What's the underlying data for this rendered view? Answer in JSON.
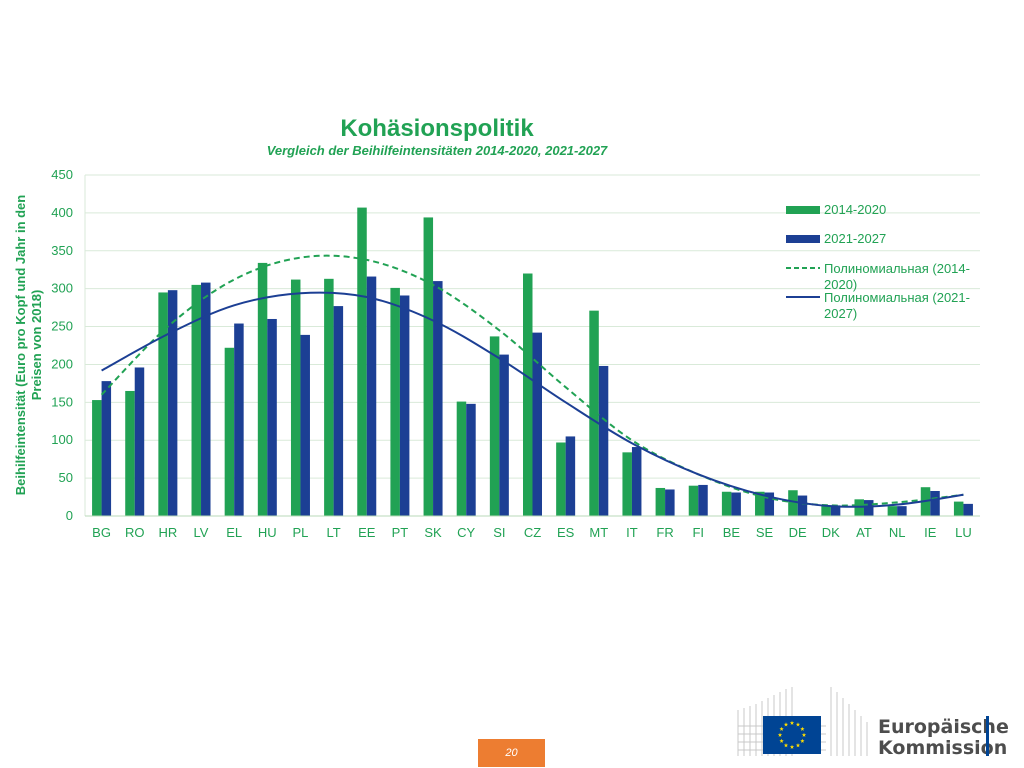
{
  "page_number": "20",
  "logo": {
    "line1": "Europäische",
    "line2": "Kommission"
  },
  "colors": {
    "series1": "#21a254",
    "series2": "#1c3f94",
    "title": "#21a254",
    "axis_text": "#21a254",
    "grid": "#d9ead9",
    "page_box": "#ed7d31",
    "logo_blue": "#004494",
    "logo_star": "#ffdd00"
  },
  "chart_data": {
    "type": "bar",
    "title": "Kohäsionspolitik",
    "subtitle": "Vergleich der Beihilfeintensitäten 2014-2020, 2021-2027",
    "xlabel": "",
    "ylabel": "Beihilfeintensität (Euro pro Kopf und Jahr in den Preisen von 2018)",
    "ylim": [
      0,
      450
    ],
    "yticks": [
      0,
      50,
      100,
      150,
      200,
      250,
      300,
      350,
      400,
      450
    ],
    "grid": true,
    "legend_position": "right",
    "categories": [
      "BG",
      "RO",
      "HR",
      "LV",
      "EL",
      "HU",
      "PL",
      "LT",
      "EE",
      "PT",
      "SK",
      "CY",
      "SI",
      "CZ",
      "ES",
      "MT",
      "IT",
      "FR",
      "FI",
      "BE",
      "SE",
      "DE",
      "DK",
      "AT",
      "NL",
      "IE",
      "LU"
    ],
    "series": [
      {
        "name": "2014-2020",
        "values": [
          153,
          165,
          295,
          305,
          222,
          334,
          312,
          313,
          407,
          301,
          394,
          151,
          237,
          320,
          97,
          271,
          84,
          37,
          40,
          32,
          32,
          34,
          14,
          22,
          13,
          38,
          19
        ]
      },
      {
        "name": "2021-2027",
        "values": [
          178,
          196,
          298,
          308,
          254,
          260,
          239,
          277,
          316,
          291,
          310,
          148,
          213,
          242,
          105,
          198,
          91,
          35,
          41,
          31,
          31,
          27,
          14,
          21,
          13,
          33,
          16
        ]
      }
    ],
    "trendlines": [
      {
        "name": "Полиномиальная (2014-2020)",
        "style": "dashed",
        "series": "2014-2020",
        "points": [
          [
            1,
            160
          ],
          [
            3,
            250
          ],
          [
            5,
            312
          ],
          [
            7,
            341
          ],
          [
            9,
            338
          ],
          [
            11,
            305
          ],
          [
            13,
            245
          ],
          [
            15,
            170
          ],
          [
            17,
            100
          ],
          [
            19,
            55
          ],
          [
            21,
            25
          ],
          [
            23,
            14
          ],
          [
            25,
            18
          ],
          [
            27,
            28
          ]
        ]
      },
      {
        "name": "Полиномиальная (2021-2027)",
        "style": "solid",
        "series": "2021-2027",
        "points": [
          [
            1,
            192
          ],
          [
            3,
            240
          ],
          [
            5,
            278
          ],
          [
            7,
            294
          ],
          [
            9,
            289
          ],
          [
            11,
            258
          ],
          [
            13,
            208
          ],
          [
            15,
            150
          ],
          [
            17,
            96
          ],
          [
            19,
            55
          ],
          [
            21,
            27
          ],
          [
            23,
            13
          ],
          [
            25,
            15
          ],
          [
            27,
            28
          ]
        ]
      }
    ]
  }
}
